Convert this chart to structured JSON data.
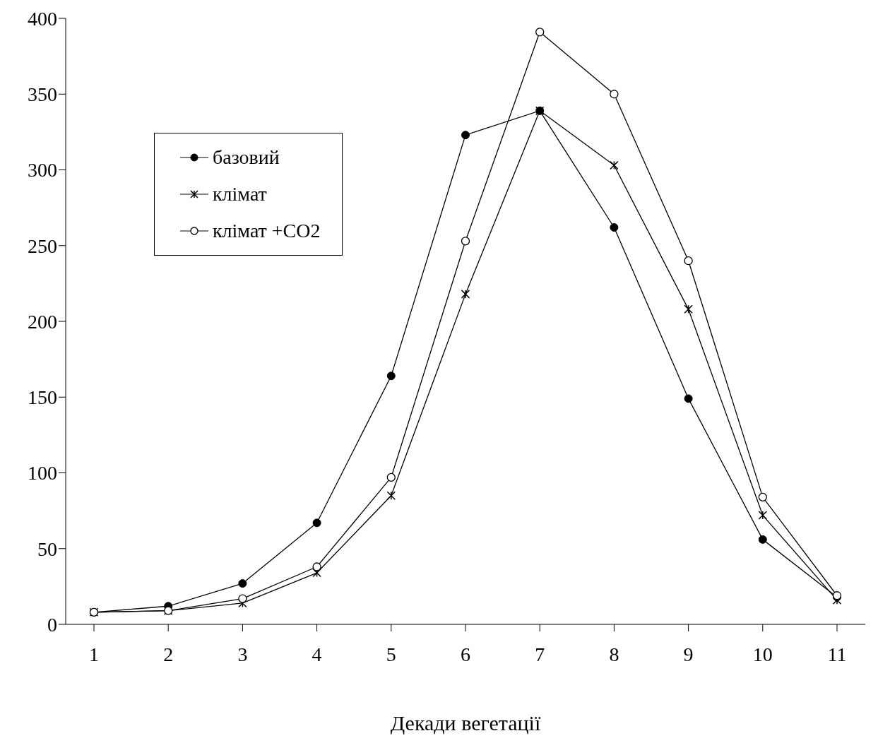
{
  "chart_data": {
    "type": "line",
    "xlabel": "Декади вегетації",
    "categories": [
      "1",
      "2",
      "3",
      "4",
      "5",
      "6",
      "7",
      "8",
      "9",
      "10",
      "11"
    ],
    "ylim": [
      0,
      400
    ],
    "yticks": [
      0,
      50,
      100,
      150,
      200,
      250,
      300,
      350,
      400
    ],
    "grid": false,
    "legend": "top left",
    "line_style": "solid",
    "series": [
      {
        "name": "базовий",
        "color": "#000000",
        "marker": "circle",
        "values": [
          8,
          12,
          27,
          67,
          164,
          323,
          339,
          262,
          149,
          56,
          18
        ]
      },
      {
        "name": "клімат",
        "color": "#000000",
        "marker": "cross",
        "values": [
          8,
          9,
          14,
          34,
          85,
          218,
          339,
          303,
          208,
          72,
          16
        ]
      },
      {
        "name": "клімат +CO2",
        "color": "#000000",
        "marker": "circle",
        "values": [
          8,
          9,
          17,
          38,
          97,
          253,
          391,
          350,
          240,
          84,
          19
        ]
      }
    ]
  }
}
